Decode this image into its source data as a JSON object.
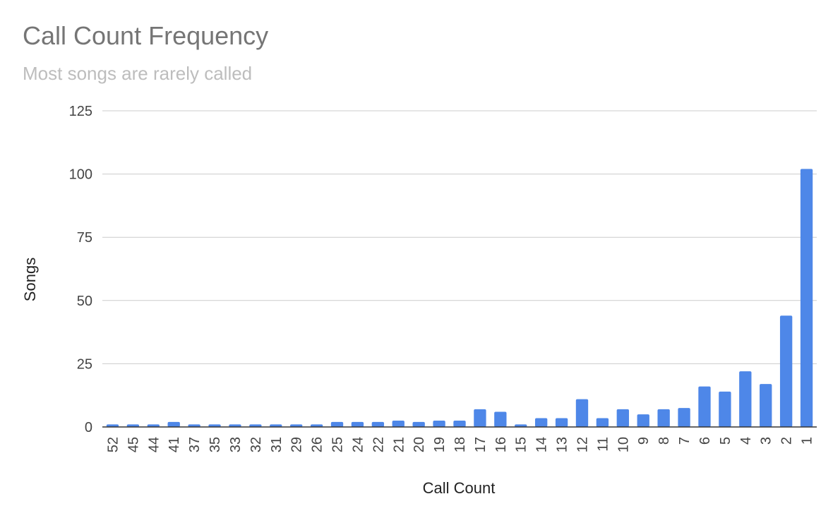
{
  "chart_data": {
    "type": "bar",
    "title": "Call Count Frequency",
    "subtitle": "Most songs are rarely called",
    "xlabel": "Call Count",
    "ylabel": "Songs",
    "ylim": [
      0,
      125
    ],
    "yticks": [
      "0",
      "25",
      "50",
      "75",
      "100",
      "125"
    ],
    "categories": [
      "52",
      "45",
      "44",
      "41",
      "37",
      "35",
      "33",
      "32",
      "31",
      "29",
      "26",
      "25",
      "24",
      "22",
      "21",
      "20",
      "19",
      "18",
      "17",
      "16",
      "15",
      "14",
      "13",
      "12",
      "11",
      "10",
      "9",
      "8",
      "7",
      "6",
      "5",
      "4",
      "3",
      "2",
      "1"
    ],
    "series": [
      {
        "values": [
          1,
          1,
          1,
          2,
          1,
          1,
          1,
          1,
          1,
          1,
          1,
          2,
          2,
          2,
          2.5,
          2,
          2.5,
          2.5,
          7,
          6,
          1,
          3.5,
          3.5,
          11,
          3.5,
          7,
          5,
          7,
          7.5,
          16,
          14,
          22,
          17,
          44,
          102
        ]
      }
    ],
    "colors": {
      "bar": "#4e87e8",
      "grid": "#cccccc",
      "axis": "#333333",
      "text": "#444444"
    },
    "grid": true,
    "legend": "none"
  }
}
